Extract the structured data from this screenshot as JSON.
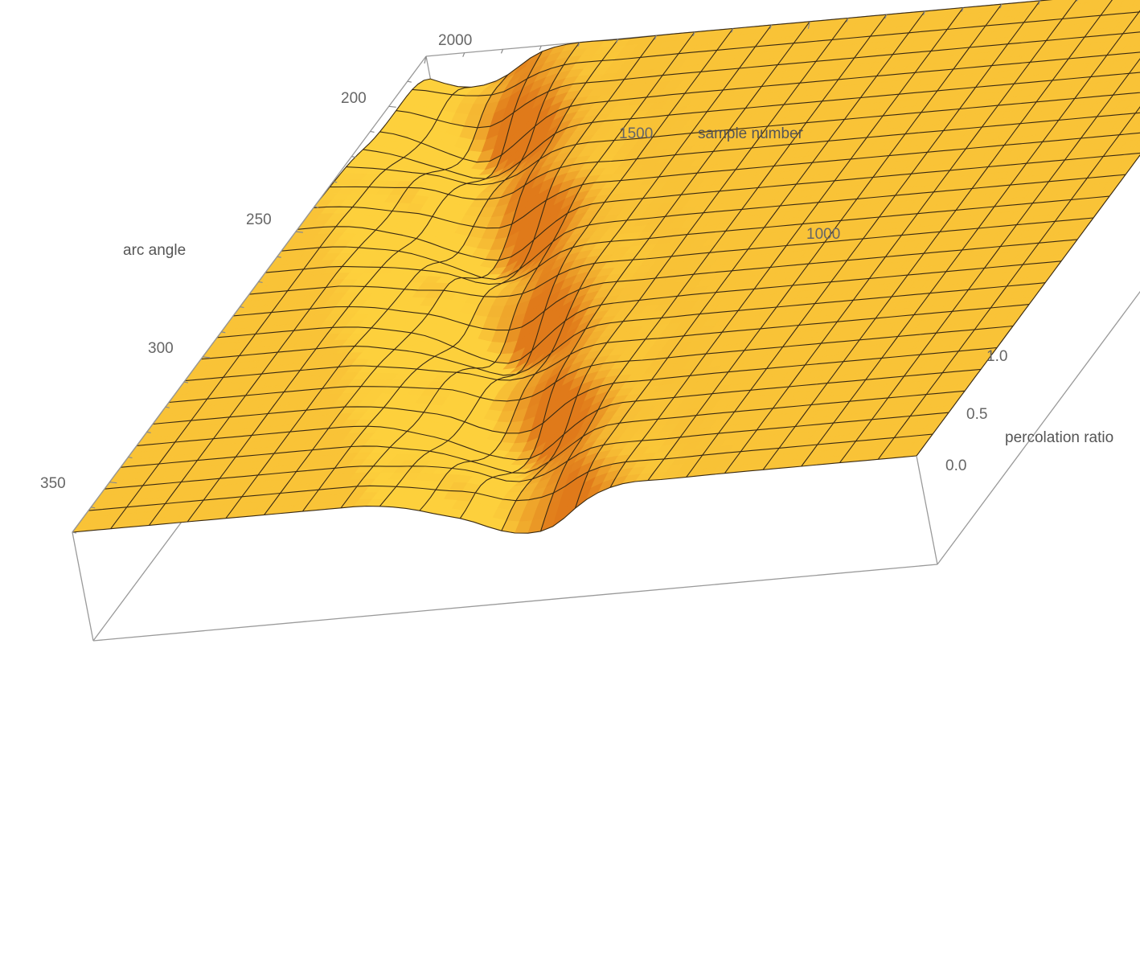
{
  "chart_data": {
    "type": "surface3d",
    "title": "",
    "x_axis": {
      "label": "sample number",
      "range": [
        900,
        2000
      ],
      "ticks": [
        1000,
        1500,
        2000
      ],
      "tick_labels": [
        "1000",
        "1500",
        "2000"
      ]
    },
    "y_axis": {
      "label": "arc angle",
      "range": [
        180,
        370
      ],
      "ticks": [
        200,
        250,
        300,
        350
      ],
      "tick_labels": [
        "200",
        "250",
        "300",
        "350"
      ]
    },
    "z_axis": {
      "label": "percolation ratio",
      "range": [
        0,
        1
      ],
      "ticks": [
        0,
        0.5,
        1.0
      ],
      "tick_labels": [
        "0.0",
        "0.5",
        "1.0"
      ]
    },
    "surface": {
      "baseline": 1.0,
      "description_of_shape": "flat plateau at percolation ratio 1.0 with a valley of steep transitions running diagonally across the sample-number / arc-angle plane",
      "valley": {
        "sample_number_at_arc_180": 1960,
        "sample_number_at_arc_370": 1430,
        "depth": 0.45,
        "width_samples": 90
      },
      "grid": {
        "x_lines": 22,
        "y_lines": 22
      }
    },
    "colors": {
      "surface_light": "#fdd03c",
      "surface_dark": "#e07a1a",
      "mesh": "#3a2a12",
      "box": "#9a9a9a",
      "text": "#666666"
    }
  }
}
